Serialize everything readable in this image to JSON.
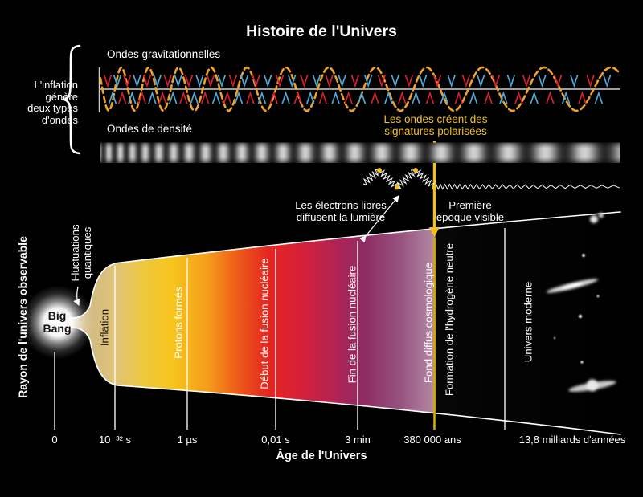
{
  "title": "Histoire de l'Univers",
  "left": {
    "brace_note_lines": [
      "L'inflation",
      "génère",
      "deux types",
      "d'ondes"
    ],
    "radius_axis_label": "Rayon de l'univers observable"
  },
  "waves": {
    "gravitational_label": "Ondes gravitationnelles",
    "density_label": "Ondes de densité"
  },
  "annotations": {
    "polarized_lines": [
      "Les ondes créent des",
      "signatures polarisées"
    ],
    "electrons_lines": [
      "Les électrons libres",
      "diffusent la lumière"
    ],
    "first_epoch_lines": [
      "Première",
      "époque visible"
    ],
    "fluctuations_lines": [
      "Fluctuations",
      "quantiques"
    ],
    "big_bang_lines": [
      "Big",
      "Bang"
    ]
  },
  "cone_regions": [
    "Inflation",
    "Protons formés",
    "Début de la fusion nucléaire",
    "Fin de la fusion nucléaire",
    "Fond diffus cosmologique",
    "Formation de l'hydrogène neutre",
    "Univers moderne"
  ],
  "axis": {
    "title": "Âge de l'Univers",
    "ticks": [
      "0",
      "10⁻³² s",
      "1 µs",
      "0,01 s",
      "3 min",
      "380 000 ans",
      "13,8 milliards d'années"
    ]
  },
  "colors": {
    "background": "#000000",
    "text_white": "#ffffff",
    "accent_yellow": "#f2c11e",
    "gold_line": "#d4ac00",
    "wave_orange": "#f0a227",
    "arrow_red": "#d6202e",
    "arrow_cyan": "#4fa8d8",
    "cone_gradient": [
      [
        0.0,
        "#c9b48a"
      ],
      [
        0.08,
        "#dec379"
      ],
      [
        0.135,
        "#efc73b"
      ],
      [
        0.185,
        "#f7c51c"
      ],
      [
        0.25,
        "#f59c1a"
      ],
      [
        0.3,
        "#ef5f19"
      ],
      [
        0.36,
        "#e42520"
      ],
      [
        0.42,
        "#d62039"
      ],
      [
        0.49,
        "#ac2456"
      ],
      [
        0.535,
        "#8e2c64"
      ],
      [
        0.6,
        "#97537f"
      ],
      [
        0.662,
        "#b489a5"
      ],
      [
        0.665,
        "#060606"
      ],
      [
        1.0,
        "#000000"
      ]
    ]
  }
}
